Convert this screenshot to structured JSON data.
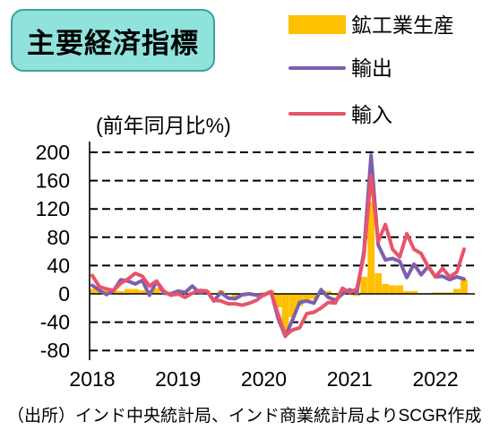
{
  "title_box": {
    "fill": "#8fe3dc",
    "border": "#3aa39b"
  },
  "source": "（出所）インド中央統計局、インド商業統計局よりSCGR作成",
  "chart_data": {
    "type": "line",
    "title": "主要経済指標",
    "xlabel": "",
    "ylabel": "(前年同月比%)",
    "ylim": [
      -80,
      200
    ],
    "y_ticks": [
      200,
      160,
      120,
      80,
      40,
      0,
      -40,
      -80
    ],
    "x_ticks": [
      "2018",
      "2019",
      "2020",
      "2021",
      "2022"
    ],
    "grid": true,
    "legend_position": "top-right",
    "x": [
      "2018-01",
      "2018-02",
      "2018-03",
      "2018-04",
      "2018-05",
      "2018-06",
      "2018-07",
      "2018-08",
      "2018-09",
      "2018-10",
      "2018-11",
      "2018-12",
      "2019-01",
      "2019-02",
      "2019-03",
      "2019-04",
      "2019-05",
      "2019-06",
      "2019-07",
      "2019-08",
      "2019-09",
      "2019-10",
      "2019-11",
      "2019-12",
      "2020-01",
      "2020-02",
      "2020-03",
      "2020-04",
      "2020-05",
      "2020-06",
      "2020-07",
      "2020-08",
      "2020-09",
      "2020-10",
      "2020-11",
      "2020-12",
      "2021-01",
      "2021-02",
      "2021-03",
      "2021-04",
      "2021-05",
      "2021-06",
      "2021-07",
      "2021-08",
      "2021-09",
      "2021-10",
      "2021-11",
      "2021-12",
      "2022-01",
      "2022-02",
      "2022-03",
      "2022-04",
      "2022-05"
    ],
    "series": [
      {
        "name": "鉱工業生産",
        "type": "bar",
        "color": "#ffc000",
        "values": [
          7,
          7,
          5,
          5,
          4,
          7,
          7,
          5,
          5,
          8,
          0,
          3,
          2,
          0,
          3,
          4,
          5,
          1,
          5,
          -1,
          -5,
          -4,
          2,
          0,
          2,
          5,
          -19,
          -57,
          -33,
          -17,
          -11,
          -7,
          1,
          4,
          -2,
          2,
          -1,
          -3,
          24,
          130,
          29,
          14,
          12,
          12,
          4,
          4,
          1,
          1,
          2,
          2,
          2,
          7,
          20
        ]
      },
      {
        "name": "輸出",
        "type": "line",
        "color": "#7d5fae",
        "values": [
          12,
          5,
          -1,
          5,
          20,
          18,
          14,
          19,
          -2,
          18,
          1,
          0,
          4,
          2,
          11,
          1,
          4,
          -10,
          2,
          -6,
          -7,
          -1,
          0,
          -2,
          -2,
          3,
          -35,
          -60,
          -37,
          -12,
          -10,
          -13,
          6,
          -5,
          -9,
          0,
          6,
          1,
          60,
          196,
          69,
          48,
          50,
          46,
          23,
          42,
          27,
          39,
          24,
          25,
          20,
          24,
          21
        ]
      },
      {
        "name": "輸入",
        "type": "line",
        "color": "#e8546a",
        "values": [
          26,
          10,
          7,
          5,
          15,
          21,
          29,
          25,
          11,
          18,
          4,
          -2,
          0,
          -5,
          1,
          5,
          4,
          -9,
          -10,
          -14,
          -14,
          -16,
          -13,
          -9,
          -1,
          3,
          -29,
          -59,
          -51,
          -48,
          -28,
          -26,
          -20,
          -12,
          -13,
          8,
          2,
          7,
          54,
          167,
          74,
          98,
          63,
          52,
          85,
          63,
          57,
          38,
          24,
          36,
          24,
          31,
          63
        ]
      }
    ]
  }
}
